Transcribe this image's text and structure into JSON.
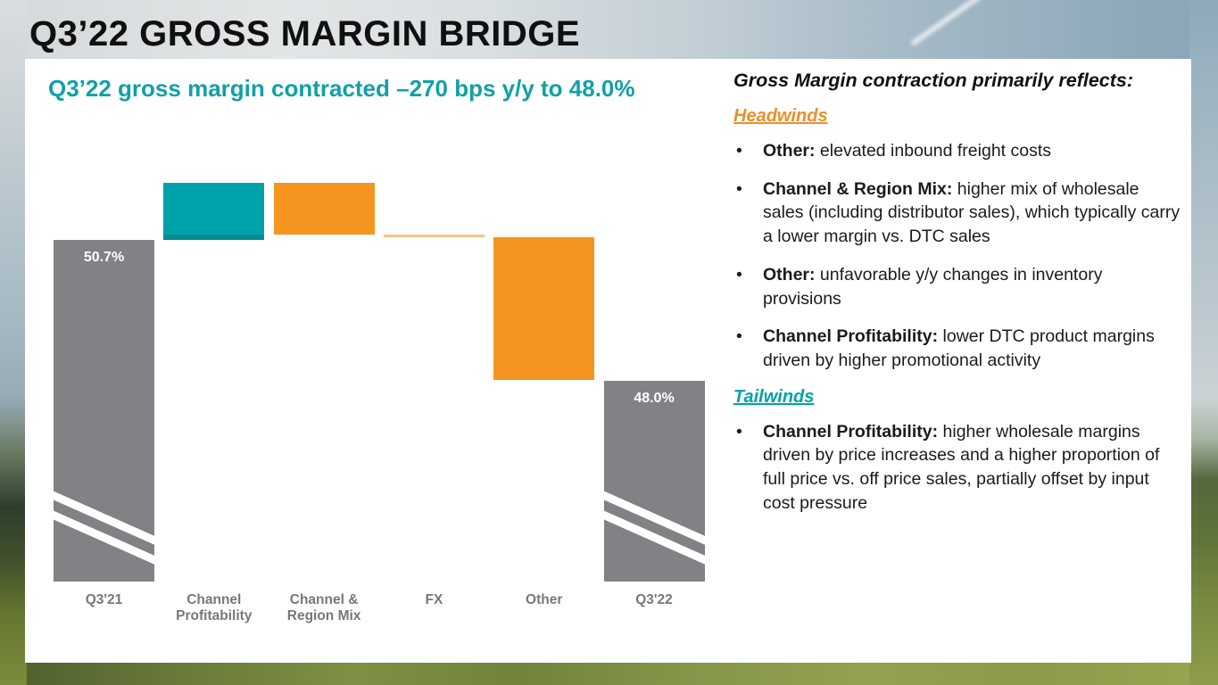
{
  "slide": {
    "title": "Q3’22 GROSS MARGIN BRIDGE"
  },
  "colors": {
    "teal": "#00A2A9",
    "orange": "#F5951F",
    "orange_light": "#F8C189",
    "gray": "#808285",
    "label_gray": "#77787B",
    "subtitle_teal": "#12A0A8",
    "headwinds_orange": "#EE8E2A",
    "tailwinds_teal": "#00A2A9"
  },
  "chart_data": {
    "type": "bar",
    "subtype": "waterfall",
    "title": "Q3’22 gross margin contracted –270 bps y/y to 48.0%",
    "units": "percent of revenue",
    "categories": [
      "Q3'21",
      "Channel Profitability",
      "Channel & Region Mix",
      "FX",
      "Other",
      "Q3'22"
    ],
    "start_value": 50.7,
    "end_value": 48.0,
    "total_change_bps": -270,
    "axis": {
      "y_axis_visible": false,
      "x_axis_visible": false,
      "grid": false,
      "axis_break_on_total_bars": true,
      "data_labels": [
        "50.7%",
        "48.0%"
      ]
    },
    "bars": [
      {
        "label": "Q3'21",
        "label_lines": [
          "Q3'21"
        ],
        "kind": "total",
        "value": 50.7,
        "value_label": "50.7%",
        "color_key": "gray",
        "axis_break": true
      },
      {
        "label": "Channel Profitability",
        "label_lines": [
          "Channel",
          "Profitability"
        ],
        "kind": "delta",
        "delta": 1.1,
        "color_key": "teal",
        "axis_break": false
      },
      {
        "label": "Channel & Region Mix",
        "label_lines": [
          "Channel &",
          "Region Mix"
        ],
        "kind": "delta",
        "delta": -1.0,
        "color_key": "orange",
        "axis_break": false
      },
      {
        "label": "FX",
        "label_lines": [
          "FX"
        ],
        "kind": "delta",
        "delta": -0.05,
        "color_key": "orange_light",
        "axis_break": false
      },
      {
        "label": "Other",
        "label_lines": [
          "Other"
        ],
        "kind": "delta",
        "delta": -2.75,
        "color_key": "orange",
        "axis_break": false
      },
      {
        "label": "Q3'22",
        "label_lines": [
          "Q3'22"
        ],
        "kind": "total",
        "value": 48.0,
        "value_label": "48.0%",
        "color_key": "gray",
        "axis_break": true
      }
    ]
  },
  "commentary": {
    "header": "Gross Margin contraction primarily reflects:",
    "sections": [
      {
        "heading": "Headwinds",
        "color_key": "headwinds_orange",
        "bullets": [
          {
            "lead": "Other:",
            "text": "elevated inbound freight costs"
          },
          {
            "lead": "Channel & Region Mix:",
            "text": "higher mix of wholesale sales (including distributor sales), which typically carry a lower margin vs. DTC sales"
          },
          {
            "lead": "Other:",
            "text": "unfavorable y/y changes in inventory provisions"
          },
          {
            "lead": "Channel Profitability:",
            "text": "lower DTC product margins driven by higher promotional activity"
          }
        ]
      },
      {
        "heading": "Tailwinds",
        "color_key": "tailwinds_teal",
        "bullets": [
          {
            "lead": "Channel Profitability:",
            "text": "higher wholesale margins driven by price increases and a higher proportion of full price vs. off price sales, partially offset by input cost pressure"
          }
        ]
      }
    ]
  }
}
